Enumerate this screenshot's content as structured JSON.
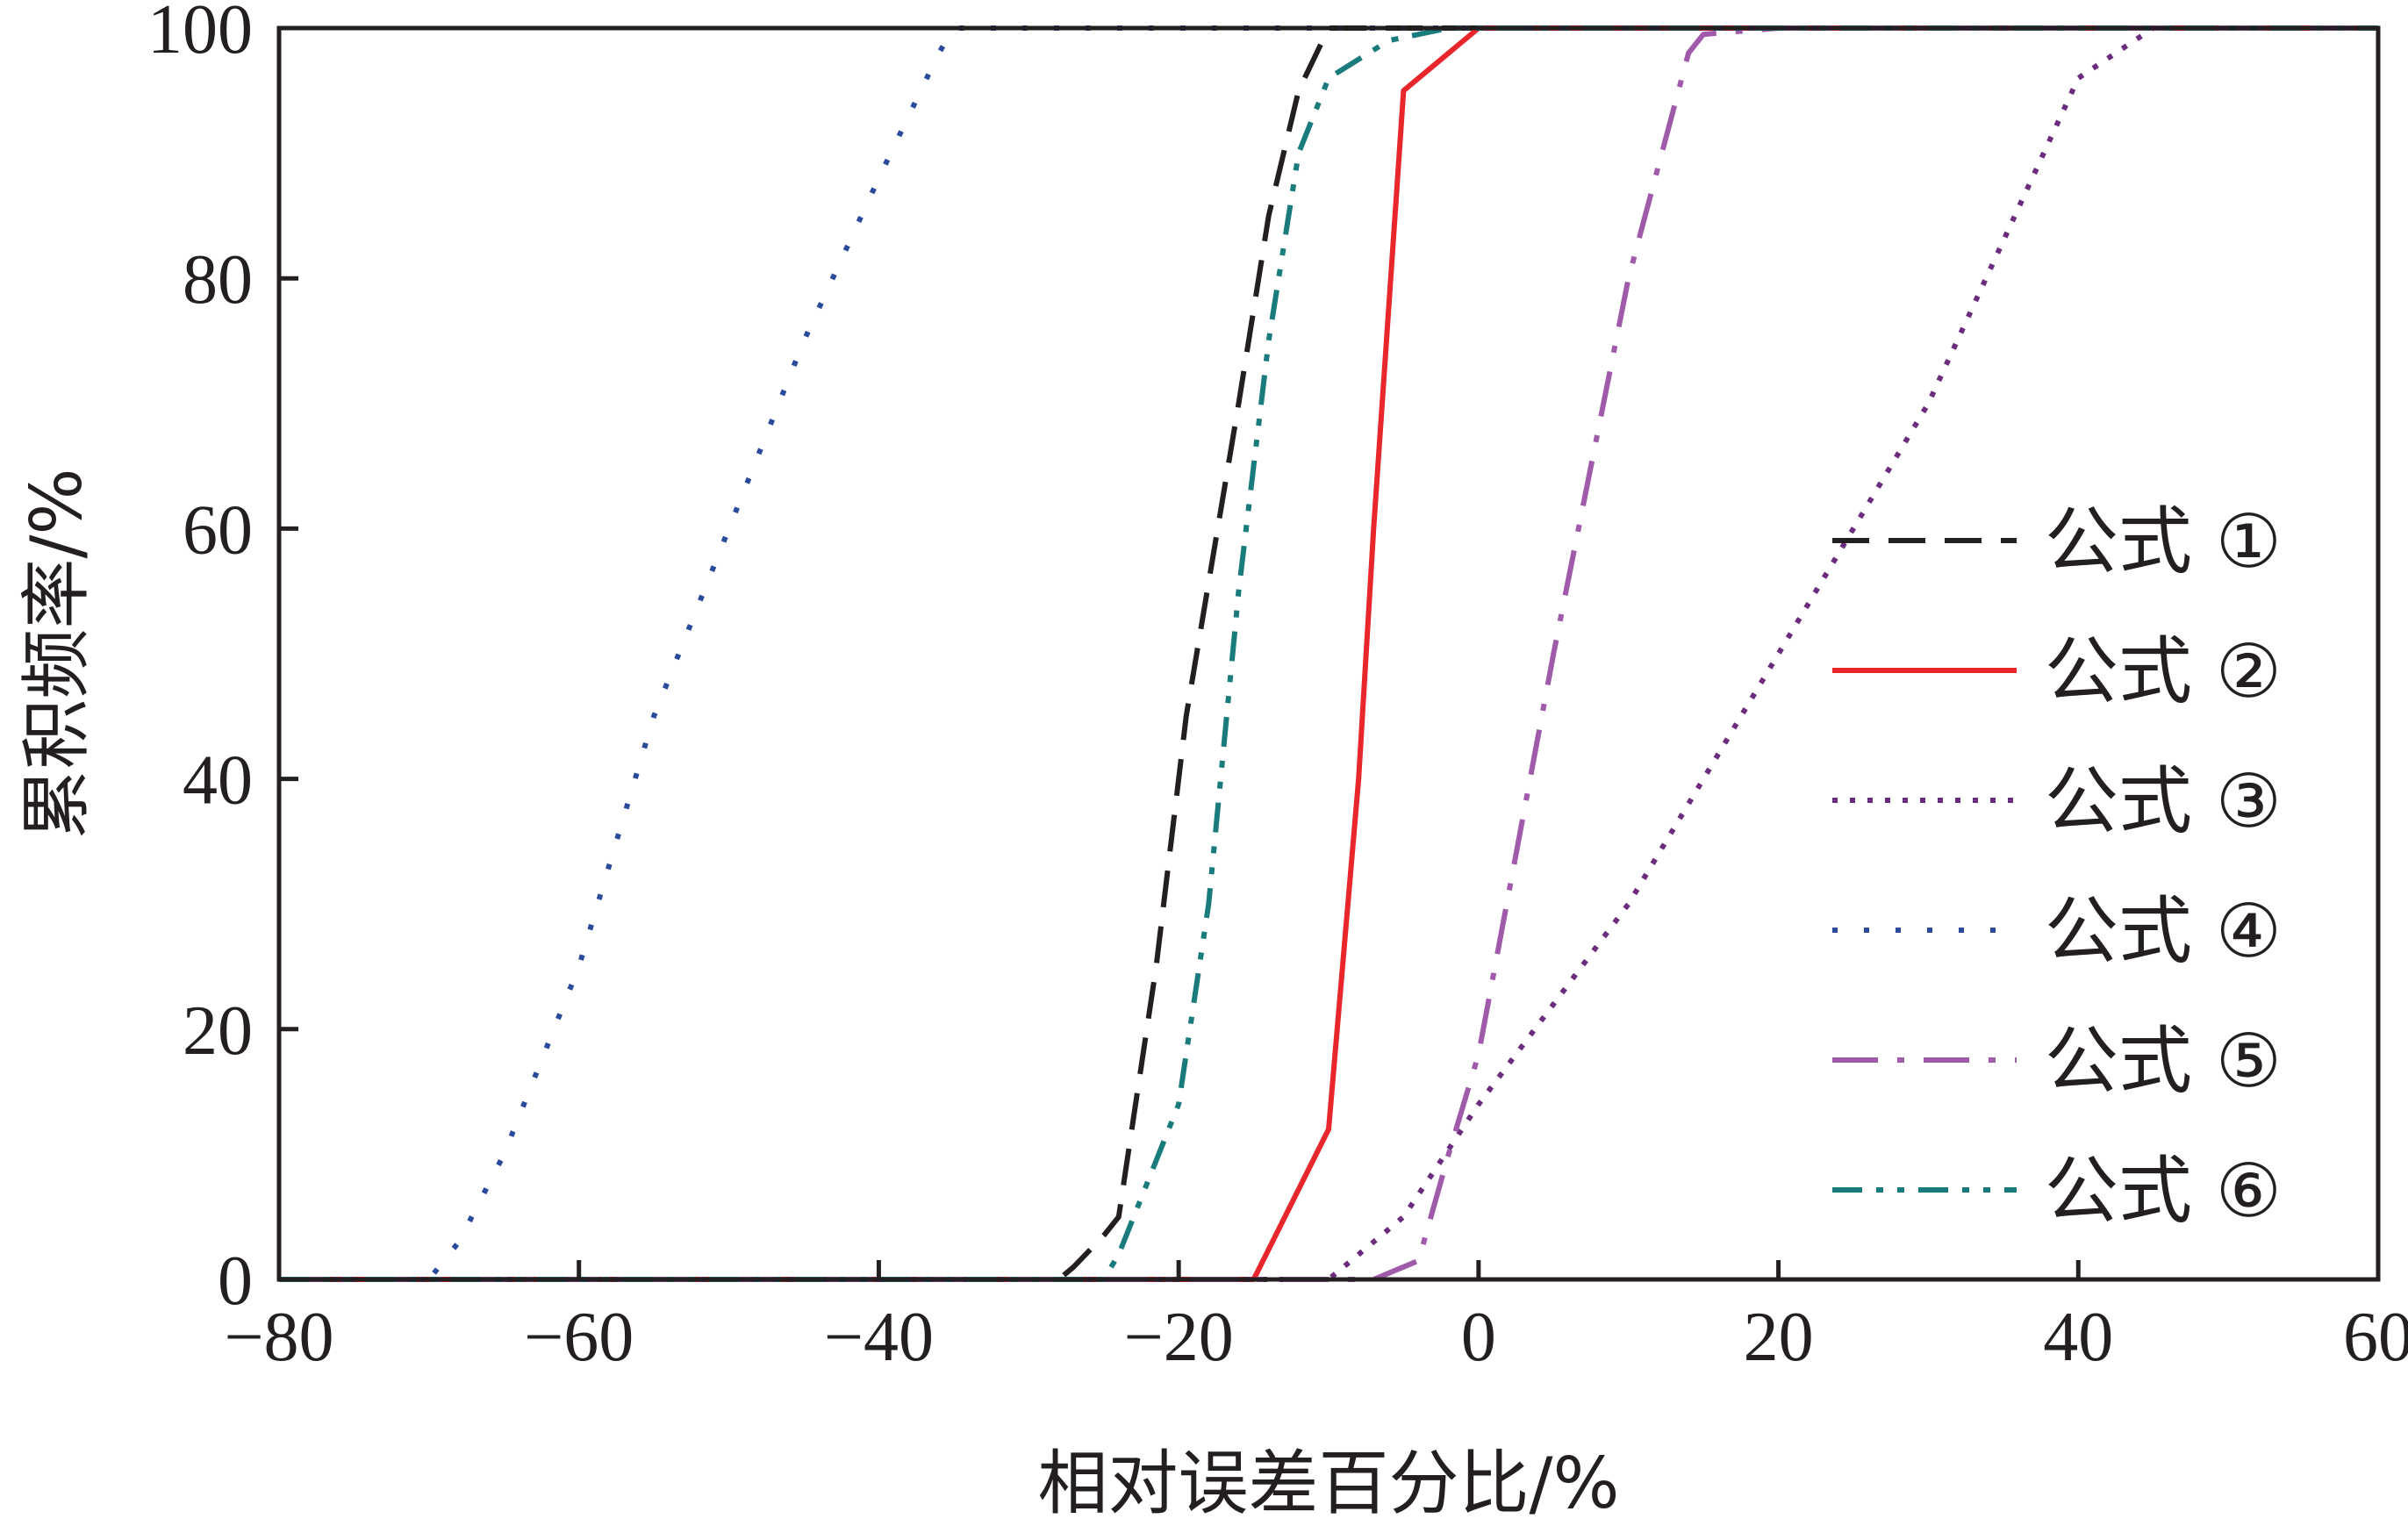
{
  "chart_data": {
    "type": "line",
    "title": "",
    "xlabel": "相对误差百分比/%",
    "ylabel": "累积频率/%",
    "xlim": [
      -80,
      60
    ],
    "ylim": [
      0,
      100
    ],
    "xticks": [
      -80,
      -60,
      -40,
      -20,
      0,
      20,
      40,
      60
    ],
    "yticks": [
      0,
      20,
      40,
      60,
      80,
      100
    ],
    "x_tick_labels": [
      "−80",
      "−60",
      "−40",
      "−20",
      "0",
      "20",
      "40",
      "60"
    ],
    "y_tick_labels": [
      "0",
      "20",
      "40",
      "60",
      "80",
      "100"
    ],
    "grid": false,
    "legend_position": "right",
    "series": [
      {
        "name": "公式 ①",
        "color": "#231f20",
        "dash": "dashed",
        "points": [
          [
            -80,
            0
          ],
          [
            -28,
            0
          ],
          [
            -27,
            1
          ],
          [
            -25,
            3.5
          ],
          [
            -24,
            5
          ],
          [
            -21.5,
            25
          ],
          [
            -19.5,
            45
          ],
          [
            -16,
            70
          ],
          [
            -14,
            85
          ],
          [
            -12,
            95
          ],
          [
            -10,
            100
          ],
          [
            60,
            100
          ]
        ]
      },
      {
        "name": "公式 ②",
        "color": "#e8262b",
        "dash": "solid",
        "points": [
          [
            -80,
            0
          ],
          [
            -15,
            0
          ],
          [
            -10,
            12
          ],
          [
            -8,
            40
          ],
          [
            -7,
            60
          ],
          [
            -5,
            95
          ],
          [
            0,
            100
          ],
          [
            60,
            100
          ]
        ]
      },
      {
        "name": "公式 ③",
        "color": "#6b2c7e",
        "dash": "dotted",
        "points": [
          [
            -80,
            0
          ],
          [
            -10,
            0
          ],
          [
            -8,
            2
          ],
          [
            -5,
            5
          ],
          [
            0,
            14
          ],
          [
            10,
            30
          ],
          [
            20,
            50
          ],
          [
            30,
            70
          ],
          [
            40,
            96
          ],
          [
            45,
            100
          ],
          [
            60,
            100
          ]
        ]
      },
      {
        "name": "公式 ④",
        "color": "#2a4a9c",
        "dash": "dotted-sparse",
        "points": [
          [
            -80,
            0
          ],
          [
            -70,
            0
          ],
          [
            -68,
            3
          ],
          [
            -65,
            10
          ],
          [
            -60,
            25
          ],
          [
            -55,
            45
          ],
          [
            -50,
            60
          ],
          [
            -45,
            75
          ],
          [
            -40,
            88
          ],
          [
            -36,
            98
          ],
          [
            -35,
            100
          ],
          [
            60,
            100
          ]
        ]
      },
      {
        "name": "公式 ⑤",
        "color": "#a05aaa",
        "dash": "dash-dot",
        "points": [
          [
            -80,
            0
          ],
          [
            -7,
            0
          ],
          [
            -4,
            1.5
          ],
          [
            -2,
            10
          ],
          [
            0,
            18
          ],
          [
            5,
            50
          ],
          [
            10,
            80
          ],
          [
            14,
            98
          ],
          [
            15,
            99.5
          ],
          [
            20,
            100
          ],
          [
            60,
            100
          ]
        ]
      },
      {
        "name": "公式 ⑥",
        "color": "#1a7b7c",
        "dash": "dash-dot-dot",
        "points": [
          [
            -80,
            0
          ],
          [
            -25,
            0
          ],
          [
            -24,
            2
          ],
          [
            -22,
            8
          ],
          [
            -20,
            14
          ],
          [
            -18,
            30
          ],
          [
            -16,
            55
          ],
          [
            -14,
            75
          ],
          [
            -12,
            90
          ],
          [
            -10,
            96
          ],
          [
            -6,
            99
          ],
          [
            -2,
            100
          ],
          [
            60,
            100
          ]
        ]
      }
    ]
  }
}
